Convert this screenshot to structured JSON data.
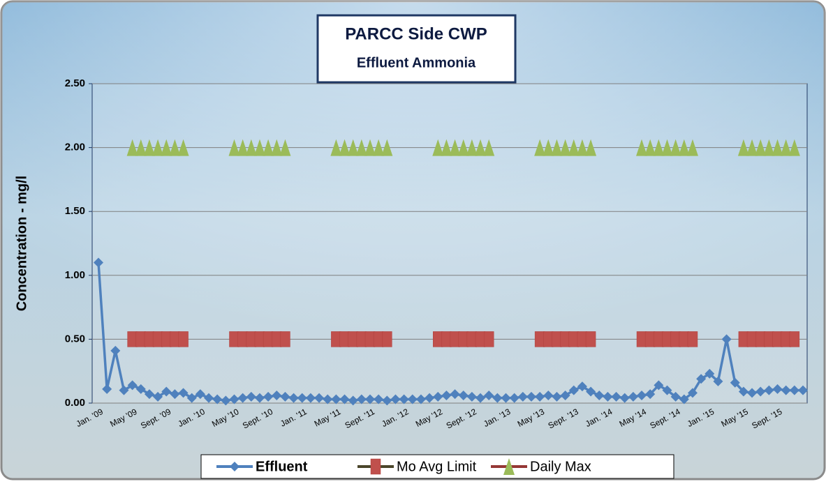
{
  "chart_data": {
    "type": "line",
    "title": "PARCC Side CWP",
    "subtitle": "Effluent Ammonia",
    "y_label": "Concentration - mg/l",
    "categories": [
      "Jan. '09",
      null,
      null,
      null,
      "May '09",
      null,
      null,
      null,
      "Sept. '09",
      null,
      null,
      null,
      "Jan. '10",
      null,
      null,
      null,
      "May '10",
      null,
      null,
      null,
      "Sept. '10",
      null,
      null,
      null,
      "Jan. '11",
      null,
      null,
      null,
      "May '11",
      null,
      null,
      null,
      "Sept. '11",
      null,
      null,
      null,
      "Jan. '12",
      null,
      null,
      null,
      "May '12",
      null,
      null,
      null,
      "Sept. '12",
      null,
      null,
      null,
      "Jan. '13",
      null,
      null,
      null,
      "May '13",
      null,
      null,
      null,
      "Sept. '13",
      null,
      null,
      null,
      "Jan. '14",
      null,
      null,
      null,
      "May '14",
      null,
      null,
      null,
      "Sept. '14",
      null,
      null,
      null,
      "Jan. '15",
      null,
      null,
      null,
      "May '15",
      null,
      null,
      null,
      "Sept. '15",
      null,
      null,
      null
    ],
    "series": [
      {
        "name": "Effluent",
        "color": "#4f81bd",
        "line_color": "#4f81bd",
        "marker": "diamond",
        "values": [
          1.1,
          0.11,
          0.41,
          0.1,
          0.14,
          0.11,
          0.07,
          0.05,
          0.09,
          0.07,
          0.08,
          0.04,
          0.07,
          0.04,
          0.03,
          0.02,
          0.03,
          0.04,
          0.05,
          0.04,
          0.05,
          0.06,
          0.05,
          0.04,
          0.04,
          0.04,
          0.04,
          0.03,
          0.03,
          0.03,
          0.02,
          0.03,
          0.03,
          0.03,
          0.02,
          0.03,
          0.03,
          0.03,
          0.03,
          0.04,
          0.05,
          0.06,
          0.07,
          0.06,
          0.05,
          0.04,
          0.06,
          0.04,
          0.04,
          0.04,
          0.05,
          0.05,
          0.05,
          0.06,
          0.05,
          0.06,
          0.1,
          0.13,
          0.09,
          0.06,
          0.05,
          0.05,
          0.04,
          0.05,
          0.06,
          0.07,
          0.14,
          0.1,
          0.05,
          0.03,
          0.08,
          0.19,
          0.23,
          0.17,
          0.5,
          0.16,
          0.09,
          0.08,
          0.09,
          0.1,
          0.11,
          0.1,
          0.1,
          0.1
        ]
      },
      {
        "name": "Mo Avg Limit",
        "color": "#c0504d",
        "line_color": "#4a452a",
        "marker": "square",
        "values": [
          null,
          null,
          null,
          null,
          0.5,
          0.5,
          0.5,
          0.5,
          0.5,
          0.5,
          0.5,
          null,
          null,
          null,
          null,
          null,
          0.5,
          0.5,
          0.5,
          0.5,
          0.5,
          0.5,
          0.5,
          null,
          null,
          null,
          null,
          null,
          0.5,
          0.5,
          0.5,
          0.5,
          0.5,
          0.5,
          0.5,
          null,
          null,
          null,
          null,
          null,
          0.5,
          0.5,
          0.5,
          0.5,
          0.5,
          0.5,
          0.5,
          null,
          null,
          null,
          null,
          null,
          0.5,
          0.5,
          0.5,
          0.5,
          0.5,
          0.5,
          0.5,
          null,
          null,
          null,
          null,
          null,
          0.5,
          0.5,
          0.5,
          0.5,
          0.5,
          0.5,
          0.5,
          null,
          null,
          null,
          null,
          null,
          0.5,
          0.5,
          0.5,
          0.5,
          0.5,
          0.5,
          0.5,
          null
        ]
      },
      {
        "name": "Daily Max",
        "color": "#9bbb59",
        "line_color": "#953735",
        "marker": "triangle",
        "values": [
          null,
          null,
          null,
          null,
          2,
          2,
          2,
          2,
          2,
          2,
          2,
          null,
          null,
          null,
          null,
          null,
          2,
          2,
          2,
          2,
          2,
          2,
          2,
          null,
          null,
          null,
          null,
          null,
          2,
          2,
          2,
          2,
          2,
          2,
          2,
          null,
          null,
          null,
          null,
          null,
          2,
          2,
          2,
          2,
          2,
          2,
          2,
          null,
          null,
          null,
          null,
          null,
          2,
          2,
          2,
          2,
          2,
          2,
          2,
          null,
          null,
          null,
          null,
          null,
          2,
          2,
          2,
          2,
          2,
          2,
          2,
          null,
          null,
          null,
          null,
          null,
          2,
          2,
          2,
          2,
          2,
          2,
          2,
          null
        ]
      }
    ],
    "ylim": [
      0,
      2.5
    ],
    "yticks": [
      {
        "value": 0,
        "label": "0.00"
      },
      {
        "value": 0.5,
        "label": "0.50"
      },
      {
        "value": 1,
        "label": "1.00"
      },
      {
        "value": 1.5,
        "label": "1.50"
      },
      {
        "value": 2,
        "label": "2.00"
      },
      {
        "value": 2.5,
        "label": "2.50"
      }
    ],
    "grid": true
  }
}
